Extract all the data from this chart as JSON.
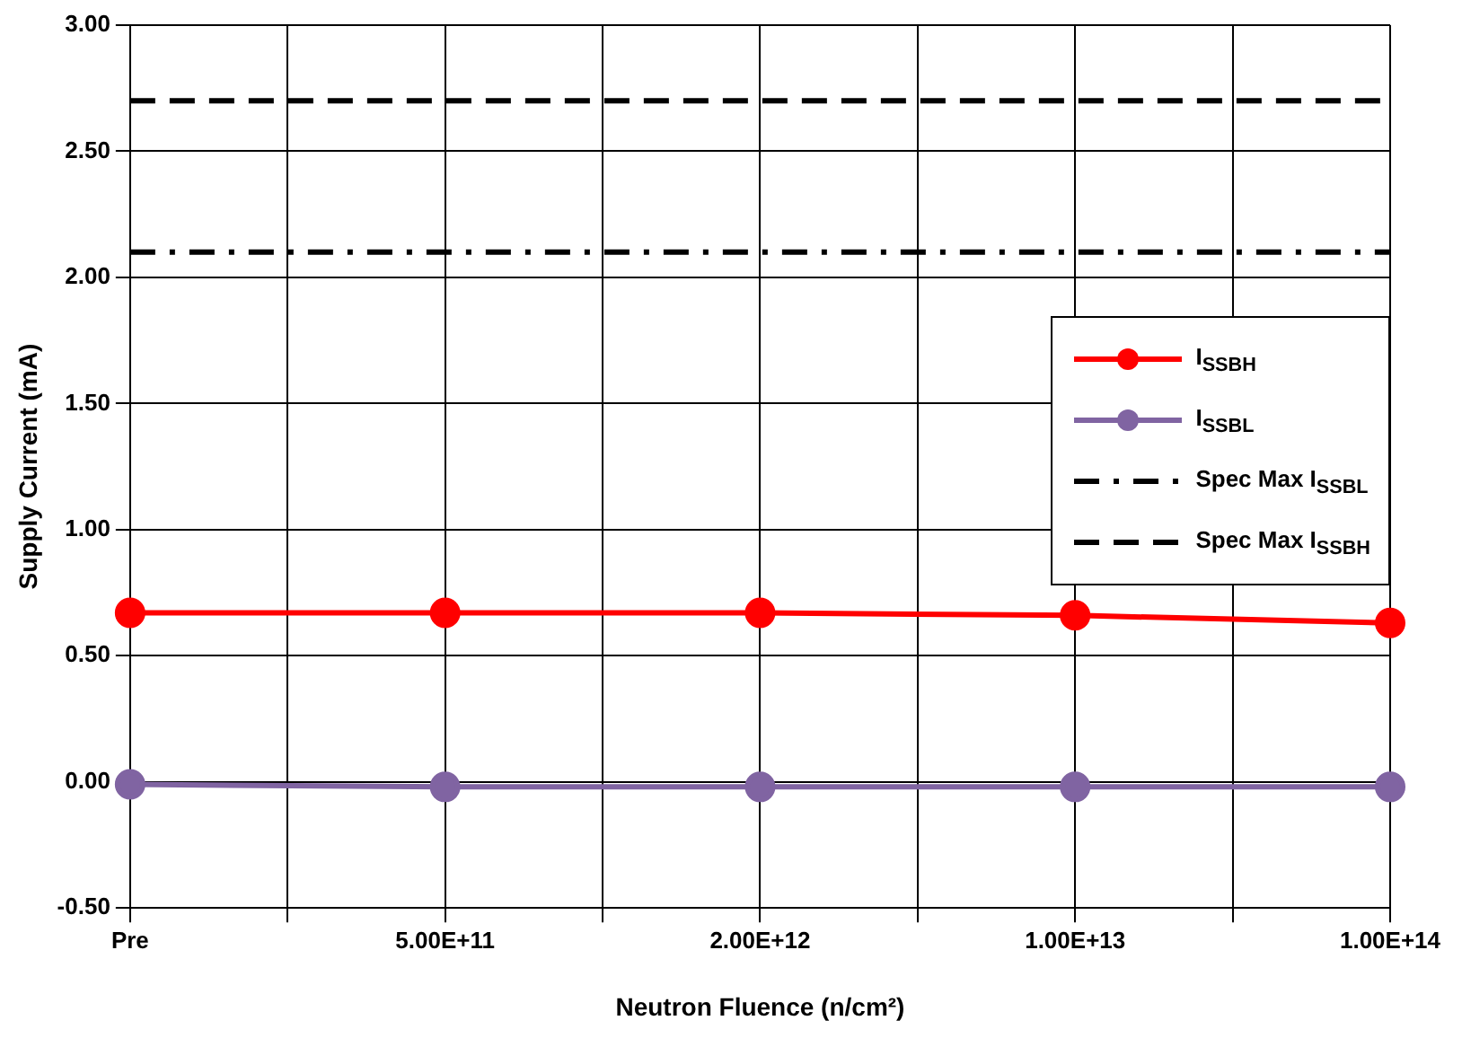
{
  "chart_data": {
    "type": "line",
    "xlabel": "Neutron Fluence (n/cm²)",
    "ylabel": "Supply Current (mA)",
    "categories": [
      "Pre",
      null,
      "5.00E+11",
      null,
      "2.00E+12",
      null,
      "1.00E+13",
      null,
      "1.00E+14"
    ],
    "series": [
      {
        "name": "I$_{SSBH}$",
        "color": "#ff0000",
        "values": [
          0.67,
          null,
          0.67,
          null,
          0.67,
          null,
          0.66,
          null,
          0.63
        ]
      },
      {
        "name": "I$_{SSBL}$",
        "color": "#8064a2",
        "values": [
          -0.01,
          null,
          -0.02,
          null,
          -0.02,
          null,
          -0.02,
          null,
          -0.02
        ]
      }
    ],
    "ref_lines": [
      {
        "axis": "y",
        "value": 2.1,
        "label": "Spec Max I$_{SSBL}$",
        "color": "#000000",
        "line_style": "dashdot"
      },
      {
        "axis": "y",
        "value": 2.7,
        "label": "Spec Max I$_{SSBH}$",
        "color": "#000000",
        "line_style": "dashed"
      }
    ],
    "ylim": [
      -0.5,
      3.0
    ],
    "yticks": [
      {
        "value": -0.5,
        "label": "-0.50"
      },
      {
        "value": 0,
        "label": "0.00"
      },
      {
        "value": 0.5,
        "label": "0.50"
      },
      {
        "value": 1,
        "label": "1.00"
      },
      {
        "value": 1.5,
        "label": "1.50"
      },
      {
        "value": 2,
        "label": "2.00"
      },
      {
        "value": 2.5,
        "label": "2.50"
      },
      {
        "value": 3,
        "label": "3.00"
      }
    ],
    "grid": true,
    "legend": "right",
    "marker": "circle",
    "line_style": "solid"
  }
}
